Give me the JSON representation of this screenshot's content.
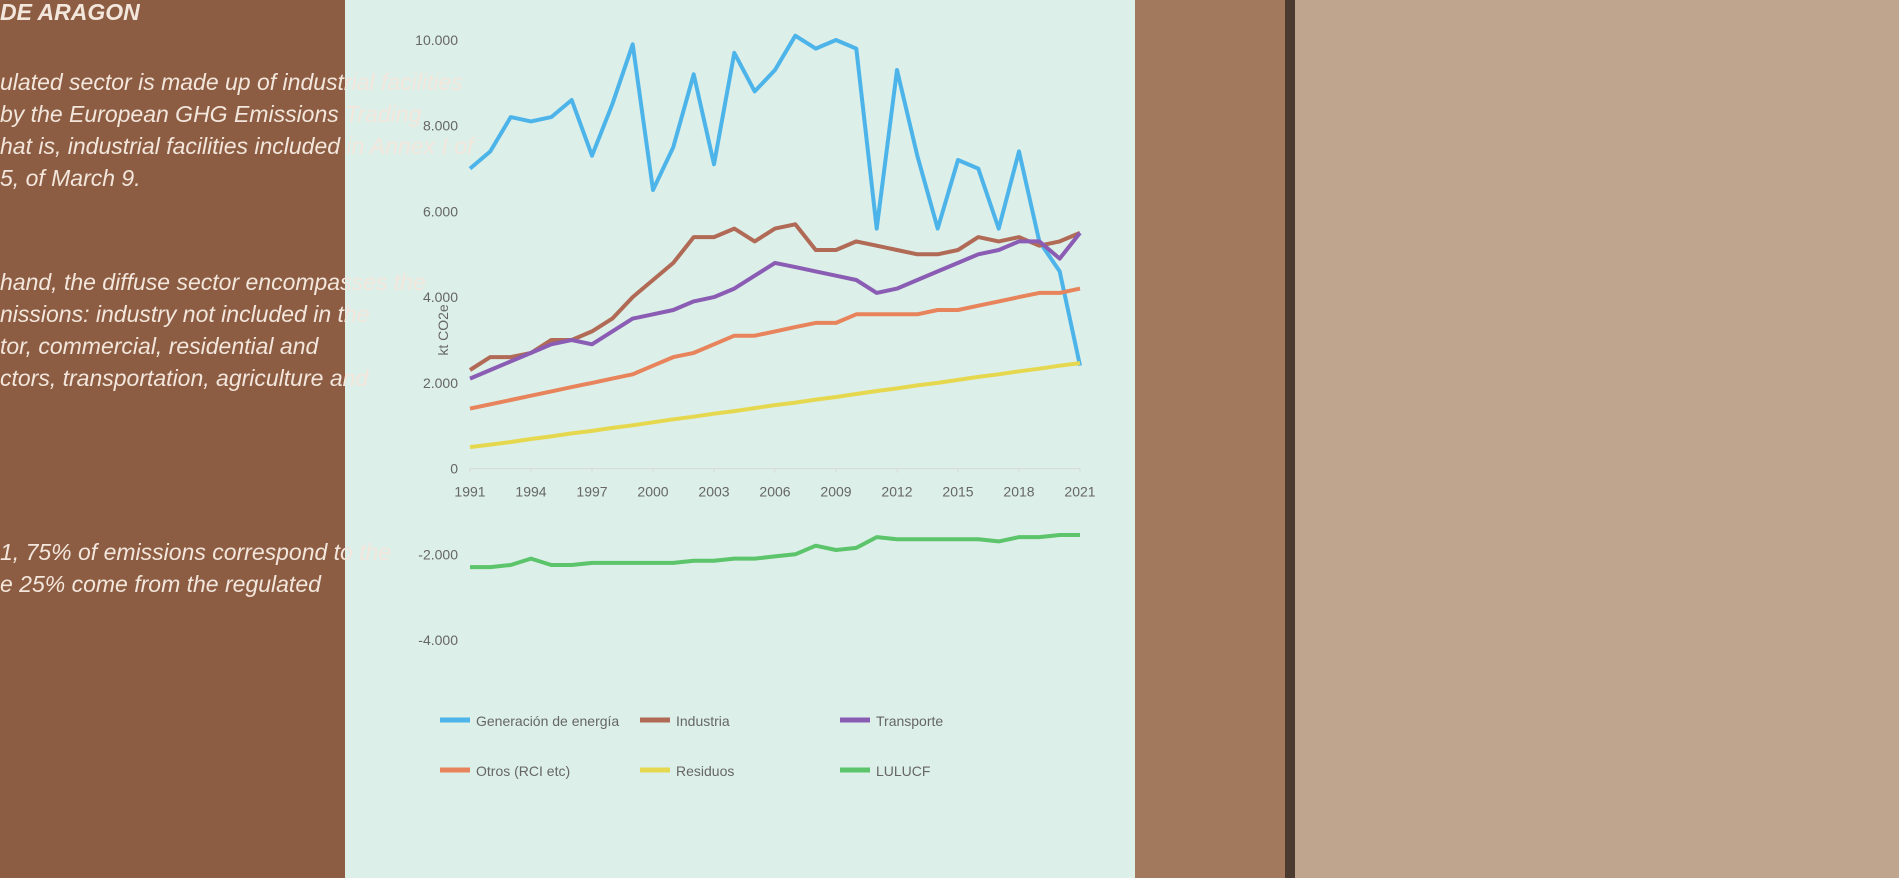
{
  "slide": {
    "heading": "DE ARAGON",
    "lines": [
      "ulated sector is made up of industrial facilities",
      "by the European GHG Emissions Trading",
      "hat is, industrial facilities included in Annex I of",
      "5, of March 9.",
      "hand, the diffuse sector encompasses the",
      "nissions: industry not included in the",
      "tor, commercial, residential and",
      "ctors, transportation, agriculture and",
      "1, 75% of emissions correspond to the",
      "e 25% come from the regulated"
    ]
  },
  "chart_data": {
    "type": "line",
    "y_label": "kt CO2e",
    "x": [
      1991,
      1992,
      1993,
      1994,
      1995,
      1996,
      1997,
      1998,
      1999,
      2000,
      2001,
      2002,
      2003,
      2004,
      2005,
      2006,
      2007,
      2008,
      2009,
      2010,
      2011,
      2012,
      2013,
      2014,
      2015,
      2016,
      2017,
      2018,
      2019,
      2020,
      2021
    ],
    "xlim": [
      1991,
      2021
    ],
    "xticks": [
      1991,
      1994,
      1997,
      2000,
      2003,
      2006,
      2009,
      2012,
      2015,
      2018,
      2021
    ],
    "ylim": [
      -4000,
      10000
    ],
    "yticks": [
      {
        "value": -4000,
        "label": "-4.000"
      },
      {
        "value": -2000,
        "label": "-2.000"
      },
      0,
      {
        "value": 2000,
        "label": "2.000"
      },
      {
        "value": 4000,
        "label": "4.000"
      },
      {
        "value": 6000,
        "label": "6.000"
      },
      {
        "value": 8000,
        "label": "8.000"
      },
      {
        "value": 10000,
        "label": "10.000"
      }
    ],
    "series": [
      {
        "name": "Generación de energía",
        "color": "#4db4ea",
        "values": [
          7000,
          7400,
          8200,
          8100,
          8200,
          8600,
          7300,
          8500,
          9900,
          6500,
          7500,
          9200,
          7100,
          9700,
          8800,
          9300,
          10100,
          9800,
          10000,
          9800,
          5600,
          9300,
          7300,
          5600,
          7200,
          7000,
          5600,
          7400,
          5300,
          4600,
          2400
        ]
      },
      {
        "name": "Industria",
        "color": "#b06a55",
        "values": [
          2300,
          2600,
          2600,
          2700,
          3000,
          3000,
          3200,
          3500,
          4000,
          4400,
          4800,
          5400,
          5400,
          5600,
          5300,
          5600,
          5700,
          5100,
          5100,
          5300,
          5200,
          5100,
          5000,
          5000,
          5100,
          5400,
          5300,
          5400,
          5200,
          5300,
          5500
        ]
      },
      {
        "name": "Transporte",
        "color": "#8a5cb3",
        "values": [
          2100,
          2300,
          2500,
          2700,
          2900,
          3000,
          2900,
          3200,
          3500,
          3600,
          3700,
          3900,
          4000,
          4200,
          4500,
          4800,
          4700,
          4600,
          4500,
          4400,
          4100,
          4200,
          4400,
          4600,
          4800,
          5000,
          5100,
          5300,
          5300,
          4900,
          5500
        ]
      },
      {
        "name": "Otros (RCI etc)",
        "color": "#e8845c",
        "values": [
          1400,
          1500,
          1600,
          1700,
          1800,
          1900,
          2000,
          2100,
          2200,
          2400,
          2600,
          2700,
          2900,
          3100,
          3100,
          3200,
          3300,
          3400,
          3400,
          3600,
          3600,
          3600,
          3600,
          3700,
          3700,
          3800,
          3900,
          4000,
          4100,
          4100,
          4200
        ]
      },
      {
        "name": "Residuos",
        "color": "#e6d84e",
        "values": [
          500,
          560,
          620,
          690,
          750,
          820,
          880,
          950,
          1010,
          1080,
          1150,
          1210,
          1280,
          1340,
          1410,
          1480,
          1540,
          1610,
          1670,
          1740,
          1810,
          1870,
          1940,
          2000,
          2070,
          2140,
          2200,
          2270,
          2330,
          2400,
          2460
        ]
      },
      {
        "name": "LULUCF",
        "color": "#5cc46a",
        "values": [
          -2300,
          -2300,
          -2250,
          -2100,
          -2250,
          -2250,
          -2200,
          -2200,
          -2200,
          -2200,
          -2200,
          -2150,
          -2150,
          -2100,
          -2100,
          -2050,
          -2000,
          -1800,
          -1900,
          -1850,
          -1600,
          -1650,
          -1650,
          -1650,
          -1650,
          -1650,
          -1700,
          -1600,
          -1600,
          -1550,
          -1550
        ]
      }
    ]
  }
}
